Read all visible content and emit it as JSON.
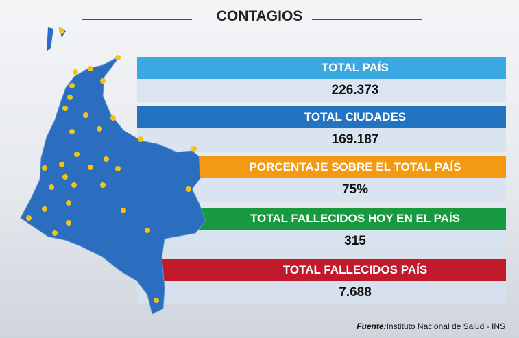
{
  "title": "CONTAGIOS",
  "stats": [
    {
      "label": "TOTAL PAÍS",
      "value": "226.373",
      "color": "#3ba9e1"
    },
    {
      "label": "TOTAL CIUDADES",
      "value": "169.187",
      "color": "#2374c0"
    },
    {
      "label": "PORCENTAJE SOBRE EL TOTAL PAÍS",
      "value": "75%",
      "color": "#f39a12"
    },
    {
      "label": "TOTAL FALLECIDOS HOY EN EL PAÍS",
      "value": "315",
      "color": "#179a3f"
    },
    {
      "label": "TOTAL FALLECIDOS PAÍS",
      "value": "7.688",
      "color": "#c21a2d"
    }
  ],
  "source": {
    "label": "Fuente:",
    "text": "Instituto Nacional de Salud - INS"
  }
}
